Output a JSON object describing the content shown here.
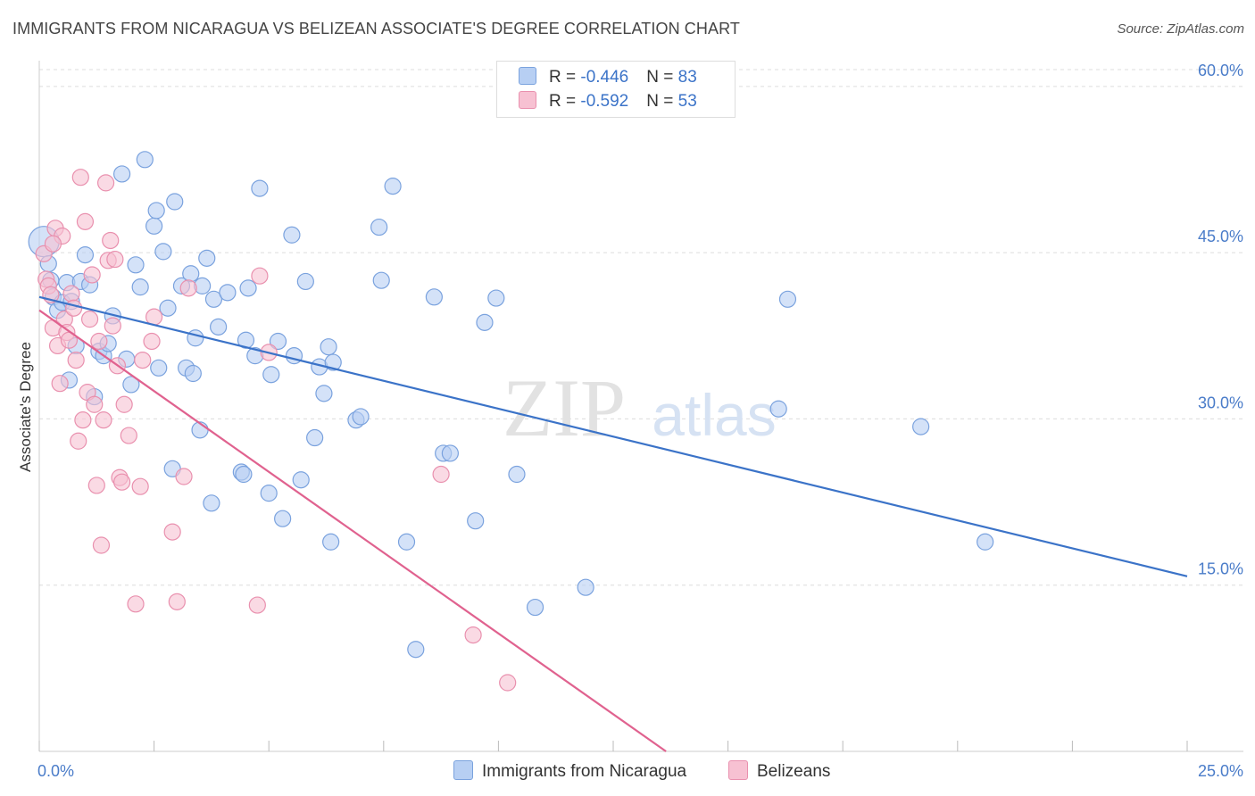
{
  "header": {
    "title": "IMMIGRANTS FROM NICARAGUA VS BELIZEAN ASSOCIATE'S DEGREE CORRELATION CHART",
    "source": "Source: ZipAtlas.com"
  },
  "watermark": {
    "zip": "ZIP",
    "atlas": "atlas"
  },
  "legend": {
    "rows": [
      {
        "r_label": "R = ",
        "r_value": "-0.446",
        "n_label": "N = ",
        "n_value": "83"
      },
      {
        "r_label": "R = ",
        "r_value": "-0.592",
        "n_label": "N = ",
        "n_value": "53"
      }
    ]
  },
  "colors": {
    "nicaragua_fill": "#b7cff3",
    "nicaragua_stroke": "#7aa2de",
    "nicaragua_line": "#3b73c8",
    "belize_fill": "#f7c1d2",
    "belize_stroke": "#e990ae",
    "belize_line": "#e0628f",
    "tick_label": "#4a7cc9",
    "grid": "#dcdcdc"
  },
  "chart_data": {
    "type": "scatter",
    "ylabel": "Associate's Degree",
    "xlim": [
      0,
      25
    ],
    "ylim": [
      0,
      62
    ],
    "x_ticks": [
      0,
      2.5,
      5,
      7.5,
      10,
      12.5,
      15,
      17.5,
      20,
      22.5,
      25
    ],
    "x_tick_labels": [
      {
        "x": 0,
        "label": "0.0%"
      },
      {
        "x": 25,
        "label": "25.0%"
      }
    ],
    "y_ticks": [
      {
        "y": 15,
        "label": "15.0%"
      },
      {
        "y": 30,
        "label": "30.0%"
      },
      {
        "y": 45,
        "label": "45.0%"
      },
      {
        "y": 60,
        "label": "60.0%"
      }
    ],
    "grid": true,
    "series": [
      {
        "name": "Immigrants from Nicaragua",
        "trend": {
          "x": [
            0,
            25
          ],
          "y": [
            41.0,
            15.8
          ]
        },
        "points": [
          [
            0.1,
            46.0
          ],
          [
            0.2,
            44.0
          ],
          [
            0.25,
            42.5
          ],
          [
            0.3,
            41.0
          ],
          [
            0.4,
            39.8
          ],
          [
            0.5,
            40.5
          ],
          [
            0.6,
            42.3
          ],
          [
            0.65,
            33.5
          ],
          [
            0.7,
            40.6
          ],
          [
            0.8,
            36.6
          ],
          [
            0.9,
            42.4
          ],
          [
            1.0,
            44.8
          ],
          [
            1.1,
            42.1
          ],
          [
            1.2,
            32.0
          ],
          [
            1.3,
            36.1
          ],
          [
            1.4,
            35.7
          ],
          [
            1.5,
            36.8
          ],
          [
            1.6,
            39.3
          ],
          [
            1.8,
            52.1
          ],
          [
            1.9,
            35.4
          ],
          [
            2.0,
            33.1
          ],
          [
            2.1,
            43.9
          ],
          [
            2.2,
            41.9
          ],
          [
            2.3,
            53.4
          ],
          [
            2.5,
            47.4
          ],
          [
            2.55,
            48.8
          ],
          [
            2.6,
            34.6
          ],
          [
            2.7,
            45.1
          ],
          [
            2.8,
            40.0
          ],
          [
            2.9,
            25.5
          ],
          [
            2.95,
            49.6
          ],
          [
            3.1,
            42.0
          ],
          [
            3.2,
            34.6
          ],
          [
            3.3,
            43.1
          ],
          [
            3.35,
            34.1
          ],
          [
            3.4,
            37.3
          ],
          [
            3.5,
            29.0
          ],
          [
            3.55,
            42.0
          ],
          [
            3.65,
            44.5
          ],
          [
            3.75,
            22.4
          ],
          [
            3.8,
            40.8
          ],
          [
            3.9,
            38.3
          ],
          [
            4.1,
            41.4
          ],
          [
            4.4,
            25.2
          ],
          [
            4.45,
            25.0
          ],
          [
            4.5,
            37.1
          ],
          [
            4.55,
            41.8
          ],
          [
            4.7,
            35.7
          ],
          [
            4.8,
            50.8
          ],
          [
            5.0,
            23.3
          ],
          [
            5.05,
            34.0
          ],
          [
            5.2,
            37.0
          ],
          [
            5.3,
            21.0
          ],
          [
            5.5,
            46.6
          ],
          [
            5.55,
            35.7
          ],
          [
            5.7,
            24.5
          ],
          [
            5.8,
            42.4
          ],
          [
            6.0,
            28.3
          ],
          [
            6.1,
            34.7
          ],
          [
            6.2,
            32.3
          ],
          [
            6.3,
            36.5
          ],
          [
            6.35,
            18.9
          ],
          [
            6.4,
            35.1
          ],
          [
            6.9,
            29.9
          ],
          [
            7.0,
            30.2
          ],
          [
            7.4,
            47.3
          ],
          [
            7.45,
            42.5
          ],
          [
            7.7,
            51.0
          ],
          [
            8.0,
            18.9
          ],
          [
            8.2,
            9.2
          ],
          [
            8.6,
            41.0
          ],
          [
            8.8,
            26.9
          ],
          [
            8.95,
            26.9
          ],
          [
            9.5,
            20.8
          ],
          [
            9.7,
            38.7
          ],
          [
            9.95,
            40.9
          ],
          [
            10.4,
            25.0
          ],
          [
            10.8,
            13.0
          ],
          [
            11.9,
            14.8
          ],
          [
            16.1,
            30.9
          ],
          [
            16.3,
            40.8
          ],
          [
            19.2,
            29.3
          ],
          [
            20.6,
            18.9
          ]
        ]
      },
      {
        "name": "Belizeans",
        "trend": {
          "x": [
            0,
            13.65
          ],
          "y": [
            39.8,
            0
          ]
        },
        "points": [
          [
            0.1,
            44.9
          ],
          [
            0.15,
            42.6
          ],
          [
            0.2,
            42.0
          ],
          [
            0.25,
            41.2
          ],
          [
            0.3,
            38.2
          ],
          [
            0.35,
            47.2
          ],
          [
            0.4,
            36.6
          ],
          [
            0.45,
            33.2
          ],
          [
            0.5,
            46.5
          ],
          [
            0.55,
            39.0
          ],
          [
            0.6,
            37.8
          ],
          [
            0.65,
            37.1
          ],
          [
            0.7,
            41.3
          ],
          [
            0.75,
            40.0
          ],
          [
            0.8,
            35.3
          ],
          [
            0.85,
            28.0
          ],
          [
            0.9,
            51.8
          ],
          [
            0.95,
            29.9
          ],
          [
            1.0,
            47.8
          ],
          [
            1.05,
            32.4
          ],
          [
            1.1,
            39.0
          ],
          [
            1.15,
            43.0
          ],
          [
            1.2,
            31.3
          ],
          [
            1.25,
            24.0
          ],
          [
            1.3,
            37.0
          ],
          [
            1.35,
            18.6
          ],
          [
            1.4,
            29.9
          ],
          [
            1.45,
            51.3
          ],
          [
            1.5,
            44.3
          ],
          [
            1.55,
            46.1
          ],
          [
            1.6,
            38.4
          ],
          [
            1.65,
            44.4
          ],
          [
            1.7,
            34.8
          ],
          [
            1.75,
            24.7
          ],
          [
            1.8,
            24.3
          ],
          [
            1.85,
            31.3
          ],
          [
            1.95,
            28.5
          ],
          [
            2.1,
            13.3
          ],
          [
            2.2,
            23.9
          ],
          [
            2.25,
            35.3
          ],
          [
            2.45,
            37.0
          ],
          [
            2.5,
            39.2
          ],
          [
            2.9,
            19.8
          ],
          [
            3.0,
            13.5
          ],
          [
            3.15,
            24.8
          ],
          [
            3.25,
            41.8
          ],
          [
            4.75,
            13.2
          ],
          [
            4.8,
            42.9
          ],
          [
            5.0,
            36.0
          ],
          [
            8.75,
            25.0
          ],
          [
            9.45,
            10.5
          ],
          [
            10.2,
            6.2
          ],
          [
            0.3,
            45.8
          ]
        ]
      }
    ]
  },
  "bottom_legend": {
    "items": [
      {
        "label": "Immigrants from Nicaragua"
      },
      {
        "label": "Belizeans"
      }
    ]
  }
}
